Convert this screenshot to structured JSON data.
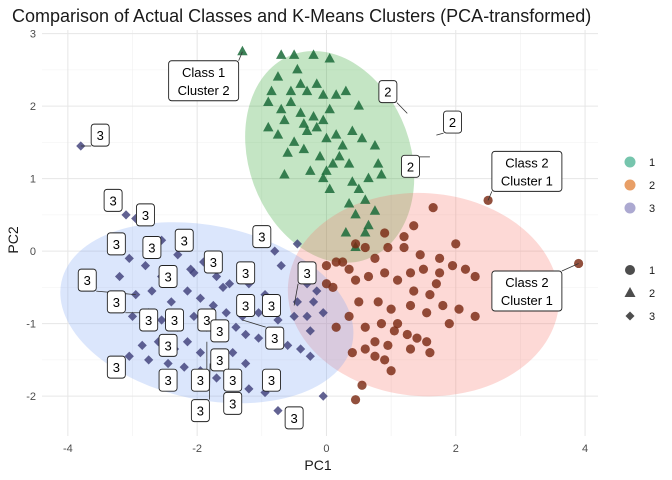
{
  "chart_data": {
    "type": "scatter",
    "title": "Comparison of Actual Classes and K-Means Clusters (PCA-transformed)",
    "xlabel": "PC1",
    "ylabel": "PC2",
    "xlim": [
      -4.4,
      4.2
    ],
    "ylim": [
      -2.55,
      3.05
    ],
    "x_ticks": [
      -4,
      -2,
      0,
      2,
      4
    ],
    "y_ticks": [
      -2,
      -1,
      0,
      1,
      2,
      3
    ],
    "x_tick_labels": [
      "-4",
      "-2",
      "0",
      "2",
      "4"
    ],
    "y_tick_labels": [
      "-2",
      "-1",
      "0",
      "1",
      "2",
      "3"
    ],
    "grid": true,
    "legend_position": "right",
    "cluster_legend": {
      "entries": [
        {
          "label": "1",
          "color": "#1B9E77"
        },
        {
          "label": "2",
          "color": "#D95F02"
        },
        {
          "label": "3",
          "color": "#7570B3"
        }
      ]
    },
    "class_legend": {
      "entries": [
        {
          "label": "1",
          "shape": "circle"
        },
        {
          "label": "2",
          "shape": "triangle"
        },
        {
          "label": "3",
          "shape": "diamond"
        }
      ]
    },
    "ellipses": [
      {
        "cluster": "1",
        "cx": 0.05,
        "cy": 1.3,
        "rx": 1.25,
        "ry": 1.5,
        "angle_deg": -20,
        "color": "#2CA02C"
      },
      {
        "cluster": "2",
        "cx": 1.5,
        "cy": -0.6,
        "rx": 2.1,
        "ry": 1.4,
        "angle_deg": 4,
        "color": "#F8766D"
      },
      {
        "cluster": "3",
        "cx": -1.85,
        "cy": -0.85,
        "rx": 2.3,
        "ry": 1.2,
        "angle_deg": 12,
        "color": "#7FA6F5"
      }
    ],
    "series": [
      {
        "name": "1",
        "color": "#1B6B3A",
        "points": [
          [
            -1.3,
            2.75
          ],
          [
            -0.7,
            2.7
          ],
          [
            -0.5,
            2.7
          ],
          [
            -0.2,
            2.7
          ],
          [
            -0.45,
            2.5
          ],
          [
            -0.75,
            2.4
          ],
          [
            0.05,
            2.65
          ],
          [
            -0.85,
            2.2
          ],
          [
            -0.55,
            2.2
          ],
          [
            -0.3,
            2.2
          ],
          [
            -0.05,
            2.15
          ],
          [
            0.3,
            2.2
          ],
          [
            0.5,
            2.0
          ],
          [
            0.15,
            2.15
          ],
          [
            -0.7,
            1.95
          ],
          [
            -0.4,
            1.9
          ],
          [
            -0.65,
            1.8
          ],
          [
            -0.35,
            1.75
          ],
          [
            -0.2,
            1.85
          ],
          [
            -0.05,
            1.8
          ],
          [
            0.05,
            1.95
          ],
          [
            -0.3,
            1.65
          ],
          [
            -0.15,
            1.7
          ],
          [
            0.0,
            1.55
          ],
          [
            0.15,
            1.6
          ],
          [
            -0.6,
            1.35
          ],
          [
            -0.35,
            1.4
          ],
          [
            -0.1,
            1.3
          ],
          [
            0.2,
            1.3
          ],
          [
            0.35,
            1.2
          ],
          [
            0.55,
            1.55
          ],
          [
            0.75,
            1.45
          ],
          [
            0.8,
            1.2
          ],
          [
            0.85,
            1.05
          ],
          [
            -0.65,
            1.05
          ],
          [
            -0.25,
            1.1
          ],
          [
            -0.05,
            1.0
          ],
          [
            0.05,
            0.85
          ],
          [
            0.4,
            0.95
          ],
          [
            0.5,
            0.85
          ],
          [
            0.6,
            0.7
          ],
          [
            0.35,
            0.65
          ],
          [
            0.45,
            0.5
          ],
          [
            0.65,
            0.35
          ],
          [
            0.3,
            0.25
          ],
          [
            0.45,
            0.05
          ],
          [
            0.75,
            0.55
          ],
          [
            0.6,
            0.25
          ],
          [
            -0.9,
            1.7
          ],
          [
            -0.75,
            1.6
          ],
          [
            -0.5,
            1.5
          ],
          [
            0.1,
            1.2
          ],
          [
            0.0,
            1.1
          ],
          [
            0.25,
            1.45
          ],
          [
            0.4,
            1.65
          ],
          [
            -0.55,
            2.05
          ],
          [
            -0.9,
            2.05
          ],
          [
            0.65,
            1.0
          ],
          [
            -0.4,
            2.3
          ],
          [
            -0.15,
            2.3
          ]
        ]
      },
      {
        "name": "2",
        "color": "#7A2A12",
        "points": [
          [
            0.6,
            0.05
          ],
          [
            0.75,
            -0.1
          ],
          [
            0.95,
            0.05
          ],
          [
            1.35,
            0.35
          ],
          [
            1.65,
            0.6
          ],
          [
            0.15,
            -0.15
          ],
          [
            0.25,
            -0.15
          ],
          [
            0.0,
            -0.2
          ],
          [
            0.0,
            -0.45
          ],
          [
            0.45,
            -0.4
          ],
          [
            0.65,
            -0.35
          ],
          [
            0.9,
            -0.3
          ],
          [
            1.1,
            -0.4
          ],
          [
            1.3,
            -0.3
          ],
          [
            1.5,
            -0.25
          ],
          [
            1.75,
            -0.3
          ],
          [
            1.95,
            -0.2
          ],
          [
            2.15,
            -0.25
          ],
          [
            2.3,
            -0.35
          ],
          [
            1.6,
            -0.6
          ],
          [
            1.8,
            -0.75
          ],
          [
            2.05,
            -0.8
          ],
          [
            2.3,
            -0.9
          ],
          [
            0.5,
            -0.7
          ],
          [
            0.8,
            -0.7
          ],
          [
            1.0,
            -0.8
          ],
          [
            1.3,
            -0.75
          ],
          [
            1.55,
            -0.85
          ],
          [
            0.35,
            -0.9
          ],
          [
            0.6,
            -1.05
          ],
          [
            0.85,
            -1.0
          ],
          [
            1.05,
            -1.1
          ],
          [
            1.25,
            -1.15
          ],
          [
            1.4,
            -1.2
          ],
          [
            1.55,
            -1.25
          ],
          [
            0.75,
            -1.25
          ],
          [
            0.95,
            -1.3
          ],
          [
            0.15,
            -1.05
          ],
          [
            0.4,
            -1.4
          ],
          [
            0.6,
            -1.35
          ],
          [
            0.75,
            -1.45
          ],
          [
            0.9,
            -1.5
          ],
          [
            1.0,
            -1.65
          ],
          [
            0.55,
            -1.85
          ],
          [
            0.45,
            -2.05
          ],
          [
            1.35,
            -0.55
          ],
          [
            1.75,
            -0.1
          ],
          [
            1.2,
            0.2
          ],
          [
            2.0,
            0.1
          ],
          [
            1.45,
            -0.05
          ],
          [
            0.9,
            0.25
          ],
          [
            1.2,
            0.05
          ],
          [
            0.45,
            0.1
          ],
          [
            0.35,
            -0.25
          ],
          [
            0.1,
            -0.5
          ],
          [
            1.9,
            -1.0
          ],
          [
            1.6,
            -1.4
          ],
          [
            1.3,
            -1.35
          ],
          [
            1.1,
            -1.0
          ],
          [
            1.7,
            -0.45
          ],
          [
            2.5,
            0.7
          ],
          [
            3.9,
            -0.17
          ]
        ]
      },
      {
        "name": "3",
        "color": "#3F3F7A",
        "points": [
          [
            -3.8,
            1.45
          ],
          [
            -3.1,
            0.5
          ],
          [
            -2.95,
            0.45
          ],
          [
            -2.75,
            0.1
          ],
          [
            -2.55,
            0.15
          ],
          [
            -3.05,
            -0.1
          ],
          [
            -2.8,
            -0.2
          ],
          [
            -2.55,
            -0.35
          ],
          [
            -2.3,
            -0.05
          ],
          [
            -2.1,
            -0.25
          ],
          [
            -1.9,
            -0.15
          ],
          [
            -1.7,
            -0.35
          ],
          [
            -1.5,
            -0.45
          ],
          [
            -1.2,
            -0.45
          ],
          [
            -2.95,
            -0.6
          ],
          [
            -2.7,
            -0.55
          ],
          [
            -2.4,
            -0.7
          ],
          [
            -2.15,
            -0.55
          ],
          [
            -1.95,
            -0.65
          ],
          [
            -1.75,
            -0.75
          ],
          [
            -1.55,
            -0.85
          ],
          [
            -1.3,
            -0.9
          ],
          [
            -1.05,
            -0.85
          ],
          [
            -0.75,
            -0.95
          ],
          [
            -0.5,
            -0.9
          ],
          [
            -0.3,
            -0.9
          ],
          [
            -3.0,
            -0.9
          ],
          [
            -2.75,
            -0.85
          ],
          [
            -2.55,
            -0.95
          ],
          [
            -2.3,
            -1.05
          ],
          [
            -2.05,
            -0.9
          ],
          [
            -1.85,
            -1.05
          ],
          [
            -1.65,
            -1.15
          ],
          [
            -1.4,
            -1.05
          ],
          [
            -1.25,
            -1.15
          ],
          [
            -1.05,
            -1.2
          ],
          [
            -0.85,
            -1.25
          ],
          [
            -0.6,
            -1.3
          ],
          [
            -0.4,
            -1.35
          ],
          [
            -2.85,
            -1.3
          ],
          [
            -2.6,
            -1.25
          ],
          [
            -2.35,
            -1.35
          ],
          [
            -2.15,
            -1.25
          ],
          [
            -1.95,
            -1.4
          ],
          [
            -1.7,
            -1.5
          ],
          [
            -1.45,
            -1.4
          ],
          [
            -1.25,
            -1.55
          ],
          [
            -3.05,
            -1.45
          ],
          [
            -2.75,
            -1.5
          ],
          [
            -2.45,
            -1.55
          ],
          [
            -2.2,
            -1.6
          ],
          [
            -1.95,
            -1.65
          ],
          [
            -1.7,
            -1.75
          ],
          [
            -1.45,
            -1.8
          ],
          [
            -1.2,
            -1.9
          ],
          [
            -0.95,
            -1.95
          ],
          [
            -0.75,
            -2.2
          ],
          [
            -0.45,
            -0.7
          ],
          [
            -0.15,
            -0.55
          ],
          [
            -0.2,
            -0.7
          ],
          [
            -0.05,
            -0.85
          ],
          [
            -0.25,
            -1.1
          ],
          [
            -0.8,
            0.0
          ],
          [
            -0.7,
            -0.2
          ],
          [
            -0.45,
            0.1
          ],
          [
            -3.2,
            -0.35
          ],
          [
            -2.05,
            -0.3
          ],
          [
            -1.6,
            -0.5
          ],
          [
            -0.95,
            -0.6
          ],
          [
            -0.3,
            -0.45
          ],
          [
            -0.05,
            -2.0
          ],
          [
            -0.25,
            -1.45
          ]
        ]
      }
    ],
    "labels": [
      {
        "lines": [
          "3"
        ],
        "x": -3.5,
        "y": 1.6,
        "tx": -3.8,
        "ty": 1.45,
        "align": "center"
      },
      {
        "lines": [
          "3"
        ],
        "x": -3.3,
        "y": 0.7,
        "tx": -3.3,
        "ty": 0.7,
        "align": "center"
      },
      {
        "lines": [
          "3"
        ],
        "x": -2.8,
        "y": 0.5,
        "tx": -2.8,
        "ty": 0.5,
        "align": "center"
      },
      {
        "lines": [
          "3"
        ],
        "x": -3.25,
        "y": 0.1,
        "tx": -3.25,
        "ty": 0.1,
        "align": "center"
      },
      {
        "lines": [
          "3"
        ],
        "x": -2.7,
        "y": 0.05,
        "tx": -2.7,
        "ty": 0.05,
        "align": "center"
      },
      {
        "lines": [
          "3"
        ],
        "x": -2.2,
        "y": 0.15,
        "tx": -2.2,
        "ty": 0.15,
        "align": "center"
      },
      {
        "lines": [
          "3"
        ],
        "x": -1.0,
        "y": 0.2,
        "tx": -1.0,
        "ty": 0.2,
        "align": "center"
      },
      {
        "lines": [
          "3"
        ],
        "x": -2.45,
        "y": -0.35,
        "tx": -2.45,
        "ty": -0.35,
        "align": "center"
      },
      {
        "lines": [
          "3"
        ],
        "x": -1.75,
        "y": -0.15,
        "tx": -1.75,
        "ty": -0.15,
        "align": "center"
      },
      {
        "lines": [
          "3"
        ],
        "x": -1.25,
        "y": -0.3,
        "tx": -1.25,
        "ty": -0.3,
        "align": "center"
      },
      {
        "lines": [
          "3"
        ],
        "x": -0.3,
        "y": -0.3,
        "tx": -0.5,
        "ty": -0.75,
        "align": "center"
      },
      {
        "lines": [
          "3"
        ],
        "x": -3.7,
        "y": -0.4,
        "tx": -2.95,
        "ty": -0.6,
        "align": "center"
      },
      {
        "lines": [
          "3"
        ],
        "x": -3.25,
        "y": -0.7,
        "tx": -2.75,
        "ty": -0.85,
        "align": "center"
      },
      {
        "lines": [
          "3"
        ],
        "x": -2.75,
        "y": -0.95,
        "tx": -2.75,
        "ty": -0.95,
        "align": "center"
      },
      {
        "lines": [
          "3"
        ],
        "x": -2.35,
        "y": -0.95,
        "tx": -2.35,
        "ty": -0.95,
        "align": "center"
      },
      {
        "lines": [
          "3"
        ],
        "x": -1.85,
        "y": -0.95,
        "tx": -1.85,
        "ty": -0.95,
        "align": "center"
      },
      {
        "lines": [
          "3"
        ],
        "x": -1.25,
        "y": -0.75,
        "tx": -1.25,
        "ty": -0.75,
        "align": "center"
      },
      {
        "lines": [
          "3"
        ],
        "x": -0.85,
        "y": -0.75,
        "tx": -0.85,
        "ty": -0.75,
        "align": "center"
      },
      {
        "lines": [
          "3"
        ],
        "x": -1.65,
        "y": -1.1,
        "tx": -1.65,
        "ty": -1.1,
        "align": "center"
      },
      {
        "lines": [
          "3"
        ],
        "x": -0.8,
        "y": -1.2,
        "tx": -1.3,
        "ty": -0.95,
        "align": "center"
      },
      {
        "lines": [
          "3"
        ],
        "x": -2.45,
        "y": -1.3,
        "tx": -2.45,
        "ty": -1.3,
        "align": "center"
      },
      {
        "lines": [
          "3"
        ],
        "x": -1.65,
        "y": -1.5,
        "tx": -1.65,
        "ty": -1.5,
        "align": "center"
      },
      {
        "lines": [
          "3"
        ],
        "x": -3.25,
        "y": -1.6,
        "tx": -3.25,
        "ty": -1.6,
        "align": "center"
      },
      {
        "lines": [
          "3"
        ],
        "x": -2.45,
        "y": -1.78,
        "tx": -2.45,
        "ty": -1.78,
        "align": "center"
      },
      {
        "lines": [
          "3"
        ],
        "x": -1.95,
        "y": -1.78,
        "tx": -1.85,
        "ty": -1.25,
        "align": "center"
      },
      {
        "lines": [
          "3"
        ],
        "x": -1.45,
        "y": -1.78,
        "tx": -1.45,
        "ty": -1.78,
        "align": "center"
      },
      {
        "lines": [
          "3"
        ],
        "x": -0.85,
        "y": -1.78,
        "tx": -0.85,
        "ty": -1.78,
        "align": "center"
      },
      {
        "lines": [
          "3"
        ],
        "x": -1.45,
        "y": -2.1,
        "tx": -1.45,
        "ty": -2.1,
        "align": "center"
      },
      {
        "lines": [
          "3"
        ],
        "x": -1.95,
        "y": -2.2,
        "tx": -1.8,
        "ty": -1.55,
        "align": "center"
      },
      {
        "lines": [
          "3"
        ],
        "x": -0.5,
        "y": -2.3,
        "tx": -0.5,
        "ty": -2.3,
        "align": "center"
      },
      {
        "lines": [
          "2"
        ],
        "x": 0.95,
        "y": 2.2,
        "tx": 1.25,
        "ty": 1.9,
        "align": "center"
      },
      {
        "lines": [
          "2"
        ],
        "x": 1.95,
        "y": 1.78,
        "tx": 1.7,
        "ty": 1.6,
        "align": "center"
      },
      {
        "lines": [
          "2"
        ],
        "x": 1.3,
        "y": 1.17,
        "tx": 1.6,
        "ty": 1.3,
        "align": "center"
      },
      {
        "lines": [
          "Class 1",
          "Cluster 2"
        ],
        "x": -1.9,
        "y": 2.35,
        "tx": -1.3,
        "ty": 2.75,
        "align": "center"
      },
      {
        "lines": [
          "Class 2",
          "Cluster 1"
        ],
        "x": 3.1,
        "y": 1.1,
        "tx": 2.5,
        "ty": 0.7,
        "align": "center"
      },
      {
        "lines": [
          "Class 2",
          "Cluster 1"
        ],
        "x": 3.1,
        "y": -0.55,
        "tx": 3.9,
        "ty": -0.17,
        "align": "center"
      }
    ]
  }
}
